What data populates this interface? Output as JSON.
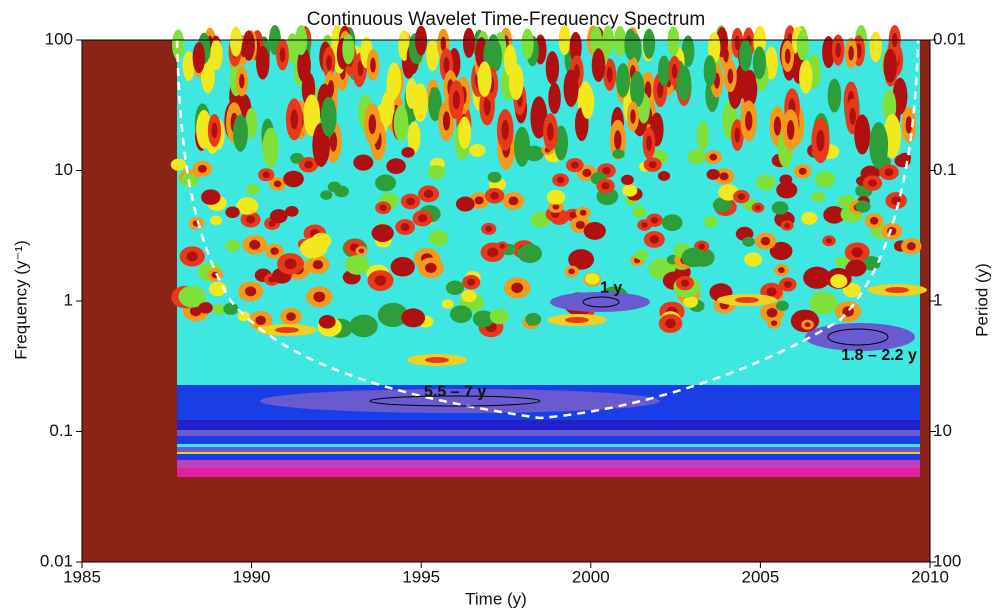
{
  "chart_data": {
    "type": "heatmap",
    "title": "Continuous Wavelet Time-Frequency Spectrum",
    "x_label": "Time  (y)",
    "y_label": "Frequency  (y⁻¹)",
    "y2_label": "Period  (y)",
    "xlim": [
      1985,
      2010
    ],
    "xticks": [
      1985,
      1990,
      1995,
      2000,
      2005,
      2010
    ],
    "ylim": [
      0.01,
      100
    ],
    "yticks": [
      0.01,
      0.1,
      1,
      10,
      100
    ],
    "yscale": "log",
    "y2lim": [
      100,
      0.01
    ],
    "y2ticks": [
      100,
      10,
      1,
      0.1,
      0.01
    ],
    "y2scale": "log",
    "annotations": [
      {
        "text": "1 y",
        "x": 2000.6,
        "y": 1.25
      },
      {
        "text": "5.5 – 7 y",
        "x": 1996,
        "y": 0.2
      },
      {
        "text": "1.8 – 2.2 y",
        "x": 2008.5,
        "y": 0.38
      }
    ]
  }
}
